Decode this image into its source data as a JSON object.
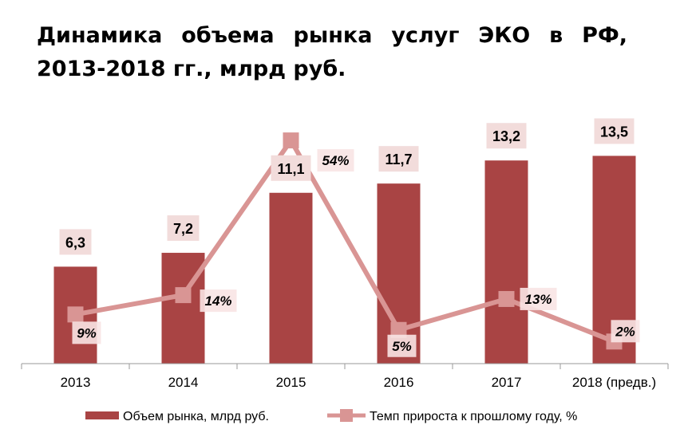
{
  "chart_data": {
    "type": "bar",
    "title": "Динамика объема рынка услуг ЭКО в РФ, 2013-2018 гг., млрд руб.",
    "categories": [
      "2013",
      "2014",
      "2015",
      "2016",
      "2017",
      "2018 (предв.)"
    ],
    "series": [
      {
        "name": "Объем рынка, млрд руб.",
        "type": "bar",
        "color": "#A94444",
        "values": [
          6.3,
          7.2,
          11.1,
          11.7,
          13.2,
          13.5
        ],
        "labels": [
          "6,3",
          "7,2",
          "11,1",
          "11,7",
          "13,2",
          "13,5"
        ]
      },
      {
        "name": "Темп прироста к прошлому году, %",
        "type": "line",
        "color": "#D99594",
        "values": [
          9,
          14,
          54,
          5,
          13,
          2
        ],
        "labels": [
          "9%",
          "14%",
          "54%",
          "5%",
          "13%",
          "2%"
        ]
      }
    ],
    "legend": "bottom",
    "grid": false
  }
}
